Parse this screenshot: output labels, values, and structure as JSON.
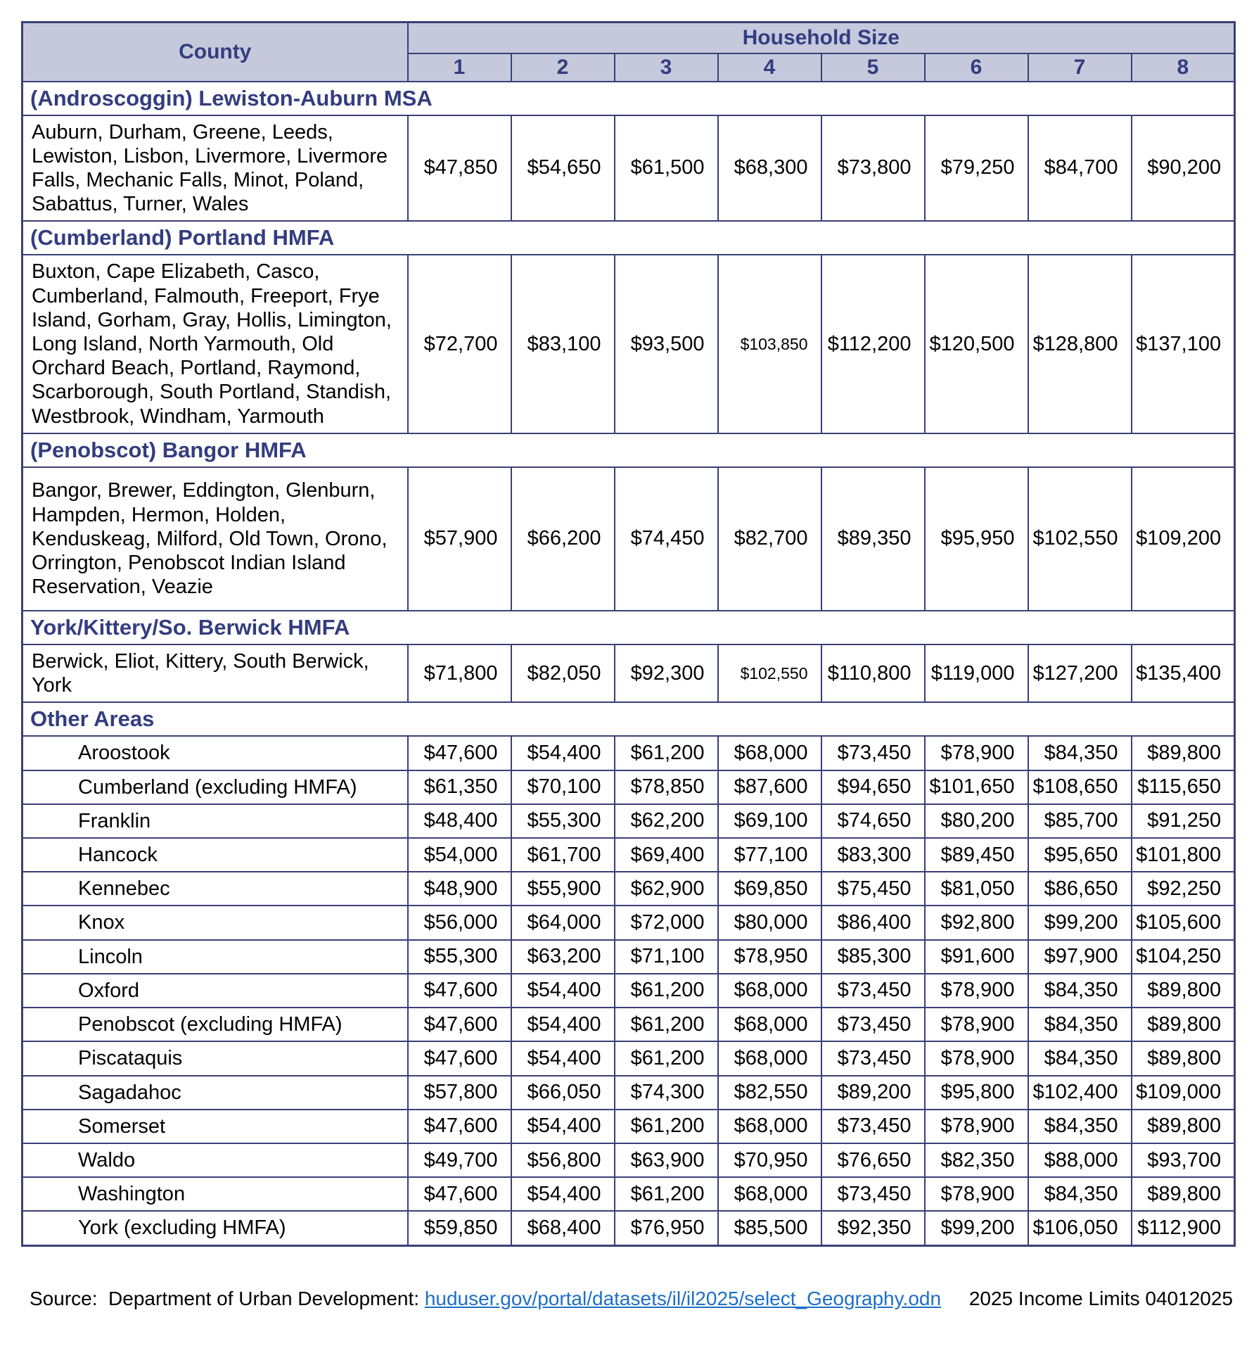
{
  "header": {
    "county": "County",
    "household_size": "Household Size",
    "sizes": [
      "1",
      "2",
      "3",
      "4",
      "5",
      "6",
      "7",
      "8"
    ]
  },
  "sections": [
    {
      "id": "androscoggin",
      "title": "(Androscoggin) Lewiston-Auburn MSA",
      "rows": [
        {
          "area": "Auburn, Durham, Greene, Leeds, Lewiston, Lisbon, Livermore, Livermore Falls, Mechanic Falls, Minot, Poland, Sabattus, Turner, Wales",
          "values": [
            "$47,850",
            "$54,650",
            "$61,500",
            "$68,300",
            "$73,800",
            "$79,250",
            "$84,700",
            "$90,200"
          ]
        }
      ]
    },
    {
      "id": "portland",
      "title": "(Cumberland) Portland HMFA",
      "rows": [
        {
          "area": "Buxton, Cape Elizabeth, Casco, Cumberland, Falmouth, Freeport, Frye Island, Gorham, Gray, Hollis, Limington, Long Island, North Yarmouth, Old Orchard Beach, Portland, Raymond, Scarborough, South Portland, Standish, Westbrook, Windham, Yarmouth",
          "values": [
            "$72,700",
            "$83,100",
            "$93,500",
            "$103,850",
            "$112,200",
            "$120,500",
            "$128,800",
            "$137,100"
          ],
          "small_cols": [
            3
          ]
        }
      ]
    },
    {
      "id": "bangor",
      "title": "(Penobscot) Bangor HMFA",
      "rows": [
        {
          "area": "Bangor, Brewer, Eddington, Glenburn, Hampden, Hermon, Holden, Kenduskeag, Milford, Old Town, Orono, Orrington, Penobscot Indian Island Reservation, Veazie",
          "values": [
            "$57,900",
            "$66,200",
            "$74,450",
            "$82,700",
            "$89,350",
            "$95,950",
            "$102,550",
            "$109,200"
          ]
        }
      ]
    },
    {
      "id": "york-kittery",
      "title": "York/Kittery/So. Berwick HMFA",
      "rows": [
        {
          "area": "Berwick, Eliot, Kittery, South Berwick, York",
          "values": [
            "$71,800",
            "$82,050",
            "$92,300",
            "$102,550",
            "$110,800",
            "$119,000",
            "$127,200",
            "$135,400"
          ],
          "small_cols": [
            3
          ]
        }
      ]
    },
    {
      "id": "other-areas",
      "title": "Other Areas",
      "rows": [
        {
          "area": "Aroostook",
          "indent": true,
          "values": [
            "$47,600",
            "$54,400",
            "$61,200",
            "$68,000",
            "$73,450",
            "$78,900",
            "$84,350",
            "$89,800"
          ]
        },
        {
          "area": "Cumberland (excluding HMFA)",
          "indent": true,
          "values": [
            "$61,350",
            "$70,100",
            "$78,850",
            "$87,600",
            "$94,650",
            "$101,650",
            "$108,650",
            "$115,650"
          ]
        },
        {
          "area": "Franklin",
          "indent": true,
          "values": [
            "$48,400",
            "$55,300",
            "$62,200",
            "$69,100",
            "$74,650",
            "$80,200",
            "$85,700",
            "$91,250"
          ]
        },
        {
          "area": "Hancock",
          "indent": true,
          "values": [
            "$54,000",
            "$61,700",
            "$69,400",
            "$77,100",
            "$83,300",
            "$89,450",
            "$95,650",
            "$101,800"
          ]
        },
        {
          "area": "Kennebec",
          "indent": true,
          "values": [
            "$48,900",
            "$55,900",
            "$62,900",
            "$69,850",
            "$75,450",
            "$81,050",
            "$86,650",
            "$92,250"
          ]
        },
        {
          "area": "Knox",
          "indent": true,
          "values": [
            "$56,000",
            "$64,000",
            "$72,000",
            "$80,000",
            "$86,400",
            "$92,800",
            "$99,200",
            "$105,600"
          ]
        },
        {
          "area": "Lincoln",
          "indent": true,
          "values": [
            "$55,300",
            "$63,200",
            "$71,100",
            "$78,950",
            "$85,300",
            "$91,600",
            "$97,900",
            "$104,250"
          ]
        },
        {
          "area": "Oxford",
          "indent": true,
          "values": [
            "$47,600",
            "$54,400",
            "$61,200",
            "$68,000",
            "$73,450",
            "$78,900",
            "$84,350",
            "$89,800"
          ]
        },
        {
          "area": "Penobscot (excluding HMFA)",
          "indent": true,
          "values": [
            "$47,600",
            "$54,400",
            "$61,200",
            "$68,000",
            "$73,450",
            "$78,900",
            "$84,350",
            "$89,800"
          ]
        },
        {
          "area": "Piscataquis",
          "indent": true,
          "values": [
            "$47,600",
            "$54,400",
            "$61,200",
            "$68,000",
            "$73,450",
            "$78,900",
            "$84,350",
            "$89,800"
          ]
        },
        {
          "area": "Sagadahoc",
          "indent": true,
          "values": [
            "$57,800",
            "$66,050",
            "$74,300",
            "$82,550",
            "$89,200",
            "$95,800",
            "$102,400",
            "$109,000"
          ]
        },
        {
          "area": "Somerset",
          "indent": true,
          "values": [
            "$47,600",
            "$54,400",
            "$61,200",
            "$68,000",
            "$73,450",
            "$78,900",
            "$84,350",
            "$89,800"
          ]
        },
        {
          "area": "Waldo",
          "indent": true,
          "values": [
            "$49,700",
            "$56,800",
            "$63,900",
            "$70,950",
            "$76,650",
            "$82,350",
            "$88,000",
            "$93,700"
          ]
        },
        {
          "area": "Washington",
          "indent": true,
          "values": [
            "$47,600",
            "$54,400",
            "$61,200",
            "$68,000",
            "$73,450",
            "$78,900",
            "$84,350",
            "$89,800"
          ]
        },
        {
          "area": "York (excluding HMFA)",
          "indent": true,
          "values": [
            "$59,850",
            "$68,400",
            "$76,950",
            "$85,500",
            "$92,350",
            "$99,200",
            "$106,050",
            "$112,900"
          ]
        }
      ]
    }
  ],
  "footer": {
    "source_label": "Source:  Department of Urban Development: ",
    "link_text": "huduser.gov/portal/datasets/il/il2025/select_Geography.odn",
    "right_text": "2025 Income Limits 04012025"
  },
  "colors": {
    "header_bg": "#c6c9dc",
    "border": "#3b3f77",
    "heading_text": "#333d7f",
    "link": "#1c6fc8"
  }
}
